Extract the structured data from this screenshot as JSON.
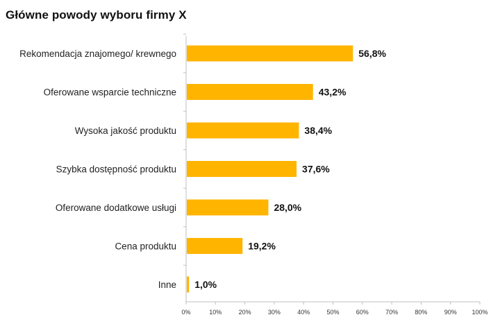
{
  "chart_data": {
    "type": "bar",
    "orientation": "horizontal",
    "title": "Główne powody wyboru firmy X",
    "categories": [
      "Rekomendacja znajomego/ krewnego",
      "Oferowane wsparcie techniczne",
      "Wysoka jakość produktu",
      "Szybka dostępność produktu",
      "Oferowane dodatkowe usługi",
      "Cena produktu",
      "Inne"
    ],
    "values": [
      56.8,
      43.2,
      38.4,
      37.6,
      28.0,
      19.2,
      1.0
    ],
    "value_labels": [
      "56,8%",
      "43,2%",
      "38,4%",
      "37,6%",
      "28,0%",
      "19,2%",
      "1,0%"
    ],
    "xlim": [
      0,
      100
    ],
    "x_ticks": [
      0,
      10,
      20,
      30,
      40,
      50,
      60,
      70,
      80,
      90,
      100
    ],
    "x_tick_labels": [
      "0%",
      "10%",
      "20%",
      "30%",
      "40%",
      "50%",
      "60%",
      "70%",
      "80%",
      "90%",
      "100%"
    ],
    "grid": false,
    "legend": "none",
    "bar_color": "#FFB400",
    "axis_color": "#BFBFBF"
  }
}
